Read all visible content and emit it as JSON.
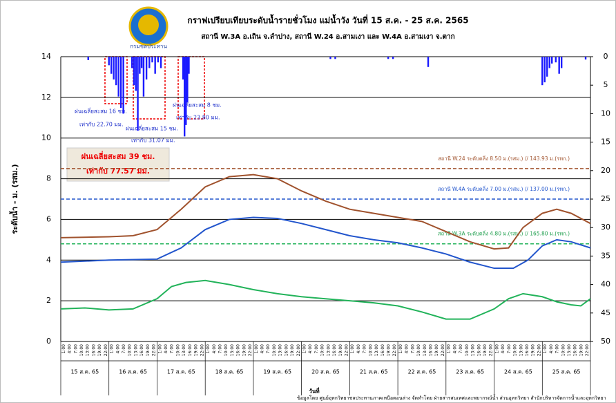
{
  "chart_data": {
    "type": "line",
    "title": "กราฟเปรียบเทียบระดับน้ำรายชั่วโมง แม่น้ำวัง วันที่ 15 ส.ค. - 25 ส.ค. 2565",
    "subtitle": "สถานี W.3A อ.เถิน จ.ลำปาง, สถานี W.24 อ.สามเงา และ  W.4A อ.สามเงา จ.ตาก",
    "y_label": "ระดับน้ำ - ม. (รสม.)",
    "x_label": "วันที่",
    "footer": "ข้อมูลโดย ศูนย์อุทกวิทยาชลประทานภาคเหนือตอนล่าง จัดทำโดย ฝ่ายสารสนเทศและพยากรณ์น้ำ ส่วนอุทกวิทยา สำนักบริหารจัดการน้ำและอุทกวิทยา",
    "logo_text": "กรมชลประทาน",
    "categories": [
      "15 ส.ค. 65",
      "16 ส.ค. 65",
      "17 ส.ค. 65",
      "18 ส.ค. 65",
      "19 ส.ค. 65",
      "20 ส.ค. 65",
      "21 ส.ค. 65",
      "22 ส.ค. 65",
      "23 ส.ค. 65",
      "24 ส.ค. 65",
      "25 ส.ค. 65"
    ],
    "hour_ticks": [
      "1:00",
      "4:00",
      "7:00",
      "10:00",
      "13:00",
      "16:00",
      "19:00",
      "22:00"
    ],
    "xlim": [
      0,
      11
    ],
    "ylim": [
      0,
      14
    ],
    "yticks": [
      0,
      2,
      4,
      6,
      8,
      10,
      12,
      14
    ],
    "y2lim": [
      0,
      50
    ],
    "y2ticks": [
      0,
      5,
      10,
      15,
      20,
      25,
      30,
      35,
      40,
      45,
      50
    ],
    "grid": true,
    "series": [
      {
        "name": "W.24",
        "color": "#a0522d",
        "x": [
          0,
          1,
          1.5,
          2,
          2.5,
          3,
          3.5,
          4,
          4.5,
          5,
          5.5,
          6,
          6.5,
          7,
          7.5,
          8,
          8.5,
          9,
          9.3,
          9.6,
          10,
          10.3,
          10.6,
          11
        ],
        "values": [
          5.1,
          5.15,
          5.2,
          5.5,
          6.5,
          7.6,
          8.1,
          8.2,
          8.0,
          7.4,
          6.9,
          6.5,
          6.3,
          6.1,
          5.9,
          5.4,
          4.9,
          4.55,
          4.6,
          5.6,
          6.3,
          6.5,
          6.3,
          5.8
        ]
      },
      {
        "name": "W.4A",
        "color": "#2255cc",
        "x": [
          0,
          1,
          2,
          2.5,
          3,
          3.5,
          4,
          4.5,
          5,
          5.5,
          6,
          6.5,
          7,
          7.5,
          8,
          8.5,
          9,
          9.4,
          9.7,
          10,
          10.3,
          10.6,
          11
        ],
        "values": [
          3.9,
          4.0,
          4.05,
          4.6,
          5.5,
          6.0,
          6.1,
          6.05,
          5.8,
          5.5,
          5.2,
          5.0,
          4.85,
          4.6,
          4.3,
          3.9,
          3.6,
          3.6,
          4.0,
          4.7,
          5.0,
          4.9,
          4.6
        ]
      },
      {
        "name": "W.3A",
        "color": "#22b35a",
        "x": [
          0,
          0.5,
          1,
          1.5,
          2,
          2.3,
          2.6,
          3,
          3.5,
          4,
          4.5,
          5,
          5.5,
          6,
          6.5,
          7,
          7.5,
          8,
          8.5,
          9,
          9.3,
          9.6,
          10,
          10.3,
          10.6,
          10.8,
          11
        ],
        "values": [
          1.6,
          1.65,
          1.55,
          1.6,
          2.1,
          2.7,
          2.9,
          3.0,
          2.8,
          2.55,
          2.35,
          2.2,
          2.1,
          2.0,
          1.9,
          1.75,
          1.45,
          1.1,
          1.1,
          1.6,
          2.1,
          2.35,
          2.2,
          1.95,
          1.8,
          1.75,
          2.1
        ]
      }
    ],
    "rain": {
      "color": "#1a1aff",
      "axis": "y2",
      "x": [
        0.57,
        1.0,
        1.05,
        1.1,
        1.15,
        1.2,
        1.25,
        1.3,
        1.48,
        1.52,
        1.56,
        1.6,
        1.64,
        1.68,
        1.72,
        1.78,
        1.84,
        1.9,
        1.96,
        2.02,
        2.08,
        2.54,
        2.57,
        2.6,
        2.63,
        2.66,
        5.6,
        5.7,
        6.8,
        6.9,
        7.63,
        10.0,
        10.05,
        10.1,
        10.15,
        10.2,
        10.28,
        10.35,
        10.4,
        10.9
      ],
      "values": [
        0.6,
        1.5,
        3,
        4,
        5,
        7,
        9,
        10,
        2,
        5,
        6,
        13,
        3,
        2,
        7,
        4,
        2,
        1,
        3,
        1,
        2,
        4,
        14,
        12,
        8,
        3,
        0.4,
        0.4,
        0.4,
        0.4,
        1.8,
        5,
        4.5,
        3.5,
        2,
        1.2,
        1,
        3,
        2,
        0.5
      ]
    },
    "thresholds": [
      {
        "value": 8.5,
        "color": "#a0522d",
        "label": "สถานี W.24 ระดับตลิ่ง 8.50 ม.(รสม.) // 143.93 ม.(รทก.)"
      },
      {
        "value": 7.0,
        "color": "#2255cc",
        "label": "สถานี W.4A ระดับตลิ่ง 7.00 ม.(รสม.) // 137.00 ม.(รทก.)"
      },
      {
        "value": 4.8,
        "color": "#22b35a",
        "label": "สถานี W.3A ระดับตลิ่ง 4.80 ม.(รสม.) // 165.80 ม.(รทก.)"
      }
    ],
    "annotations": [
      [
        "ฝนเฉลี่ยสะสม 16 ชม.",
        "เท่ากับ 22.70 มม."
      ],
      [
        "ฝนเฉลี่ยสะสม 15 ชม.",
        "เท่ากับ 31.07 มม."
      ],
      [
        "ฝนเฉลี่ยสะสม 8 ชม.",
        "เท่ากับ 23.80 มม."
      ],
      [
        "ฝนเฉลี่ยสะสม 39 ชม.",
        "เท่ากับ 77.57 มม."
      ]
    ]
  }
}
